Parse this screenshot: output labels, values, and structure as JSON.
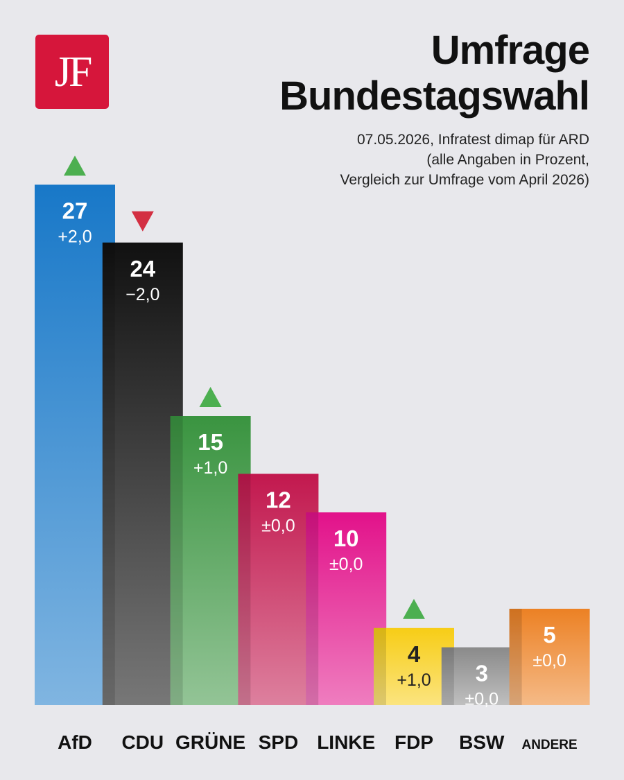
{
  "logo": {
    "text": "JF",
    "color": "#d6163b"
  },
  "title_lines": [
    "Umfrage",
    "Bundestagswahl"
  ],
  "subtitle_lines": [
    "07.05.2026, Infratest dimap für ARD",
    "(alle Angaben in Prozent,",
    "Vergleich zur Umfrage vom April 2026)"
  ],
  "chart_data": {
    "type": "bar",
    "title": "Umfrage Bundestagswahl",
    "categories": [
      "AfD",
      "CDU",
      "GRÜNE",
      "SPD",
      "LINKE",
      "FDP",
      "BSW",
      "ANDERE"
    ],
    "values": [
      27,
      24,
      15,
      12,
      10,
      4,
      3,
      5
    ],
    "changes": [
      "+2,0",
      "−2,0",
      "+1,0",
      "±0,0",
      "±0,0",
      "+1,0",
      "±0,0",
      "±0,0"
    ],
    "trend": [
      "up",
      "down",
      "up",
      "none",
      "none",
      "up",
      "none",
      "none"
    ],
    "colors": [
      "#1878c8",
      "#111111",
      "#3a9440",
      "#c2184e",
      "#e2128a",
      "#f7cd16",
      "#8a8a8a",
      "#ec8124"
    ],
    "label_colors": [
      "#ffffff",
      "#ffffff",
      "#ffffff",
      "#ffffff",
      "#ffffff",
      "#222222",
      "#ffffff",
      "#ffffff"
    ],
    "trend_colors": {
      "up": "#4caf50",
      "down": "#d32f42"
    },
    "ylim": [
      0,
      30
    ],
    "grid": false,
    "legend": "none"
  }
}
